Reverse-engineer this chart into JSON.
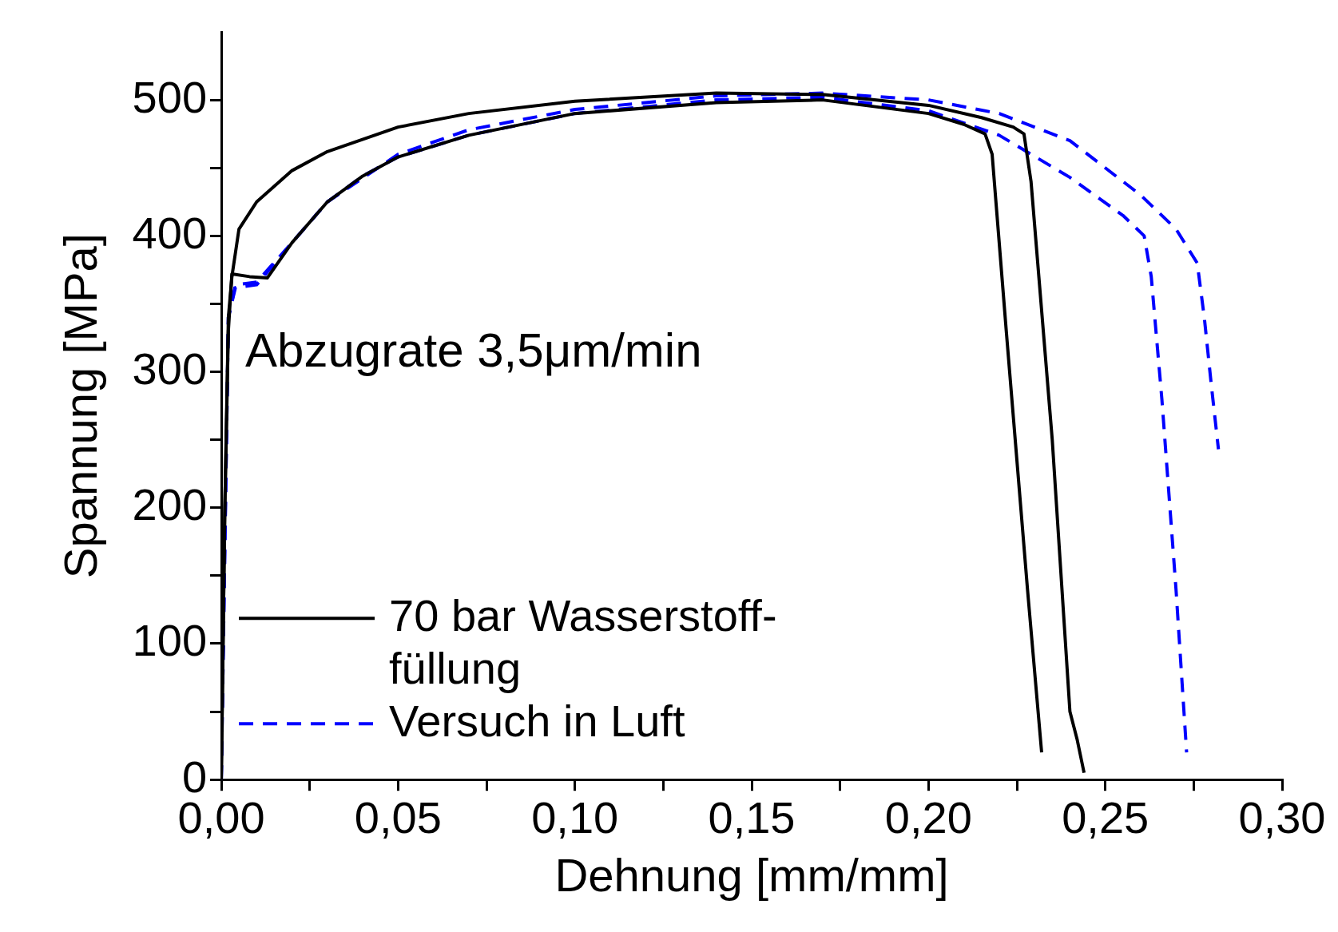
{
  "chart_data": {
    "type": "line",
    "xlabel": "Dehnung [mm/mm]",
    "ylabel": "Spannung [MPa]",
    "annotations": [
      "Abzugrate 3,5μm/min"
    ],
    "xlim": [
      0,
      0.3
    ],
    "ylim": [
      0,
      550
    ],
    "xticks": [
      {
        "value": 0,
        "label": "0,00"
      },
      {
        "value": 0.025,
        "label": null
      },
      {
        "value": 0.05,
        "label": "0,05"
      },
      {
        "value": 0.075,
        "label": null
      },
      {
        "value": 0.1,
        "label": "0,10"
      },
      {
        "value": 0.125,
        "label": null
      },
      {
        "value": 0.15,
        "label": "0,15"
      },
      {
        "value": 0.175,
        "label": null
      },
      {
        "value": 0.2,
        "label": "0,20"
      },
      {
        "value": 0.225,
        "label": null
      },
      {
        "value": 0.25,
        "label": "0,25"
      },
      {
        "value": 0.275,
        "label": null
      },
      {
        "value": 0.3,
        "label": "0,30"
      }
    ],
    "yticks": [
      0,
      {
        "value": 50,
        "label": null
      },
      100,
      {
        "value": 150,
        "label": null
      },
      200,
      {
        "value": 250,
        "label": null
      },
      300,
      {
        "value": 350,
        "label": null
      },
      400,
      {
        "value": 450,
        "label": null
      },
      500
    ],
    "legend": "left",
    "line_style": "solid",
    "marker": "none",
    "series": [
      {
        "name": "70 bar Wasserstoff-füllung",
        "color": "#000000",
        "x": [
          0,
          0.001,
          0.002,
          0.003,
          0.005,
          0.01,
          0.02,
          0.03,
          0.05,
          0.07,
          0.1,
          0.14,
          0.17,
          0.2,
          0.215,
          0.224,
          0.227,
          0.229,
          0.235,
          0.24,
          0.242,
          0.244
        ],
        "values": [
          0,
          200,
          340,
          370,
          405,
          425,
          448,
          462,
          480,
          490,
          499,
          505,
          504,
          496,
          487,
          480,
          475,
          440,
          250,
          50,
          30,
          5
        ]
      },
      {
        "color": "#000000",
        "x": [
          0,
          0.001,
          0.002,
          0.003,
          0.008,
          0.013,
          0.02,
          0.03,
          0.04,
          0.05,
          0.07,
          0.1,
          0.14,
          0.17,
          0.2,
          0.21,
          0.216,
          0.218,
          0.222,
          0.228,
          0.232
        ],
        "values": [
          0,
          200,
          330,
          372,
          370,
          369,
          395,
          425,
          444,
          458,
          474,
          490,
          498,
          500,
          490,
          482,
          475,
          460,
          330,
          140,
          20
        ]
      },
      {
        "name": "Versuch in Luft",
        "color": "#0000ff",
        "line_style": "dashed",
        "x": [
          0,
          0.002,
          0.004,
          0.01,
          0.02,
          0.03,
          0.04,
          0.05,
          0.07,
          0.1,
          0.14,
          0.17,
          0.2,
          0.22,
          0.24,
          0.255,
          0.261,
          0.263,
          0.266,
          0.27,
          0.273
        ],
        "values": [
          0,
          340,
          364,
          366,
          395,
          425,
          444,
          458,
          474,
          490,
          500,
          502,
          492,
          474,
          443,
          415,
          400,
          370,
          280,
          140,
          20
        ]
      },
      {
        "color": "#0000ff",
        "line_style": "dashed",
        "x": [
          0,
          0.002,
          0.004,
          0.01,
          0.02,
          0.03,
          0.05,
          0.07,
          0.1,
          0.14,
          0.17,
          0.2,
          0.22,
          0.24,
          0.26,
          0.27,
          0.276,
          0.278,
          0.28,
          0.282
        ],
        "values": [
          0,
          340,
          362,
          364,
          395,
          425,
          460,
          478,
          493,
          503,
          505,
          500,
          490,
          470,
          430,
          405,
          380,
          340,
          290,
          243
        ]
      }
    ]
  }
}
